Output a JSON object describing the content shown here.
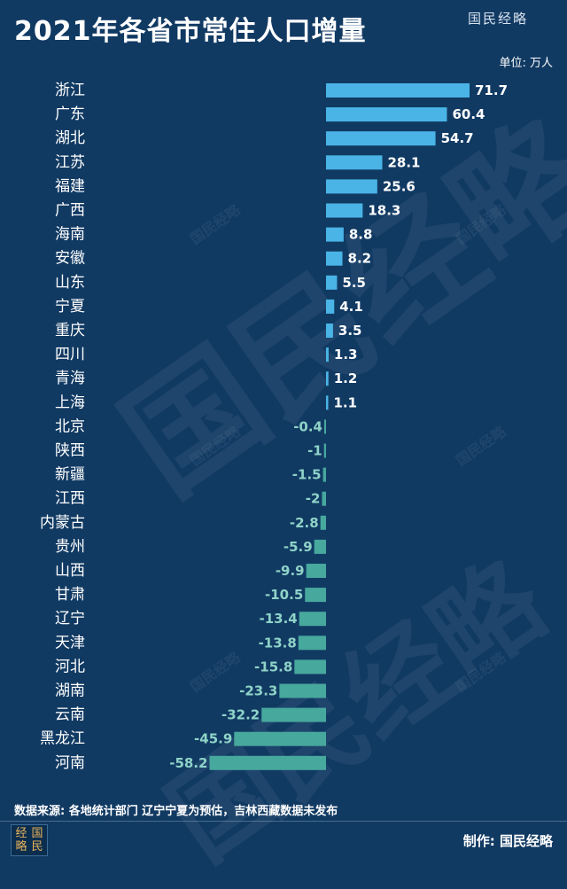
{
  "header": {
    "title": "2021年各省市常住人口增量",
    "brand": "国民经略",
    "unit": "单位: 万人"
  },
  "watermark": {
    "text": "国民经略"
  },
  "footer": {
    "source": "数据来源: 各地统计部门 辽宁宁夏为预估，吉林西藏数据未发布",
    "logo_chars": [
      "经",
      "国",
      "略",
      "民"
    ],
    "maker": "制作: 国民经略"
  },
  "colors": {
    "background": "#113a63",
    "positive_bar": "#4ab4e6",
    "negative_bar": "#47a89d",
    "negative_label": "#8fd3c8"
  },
  "chart_data": {
    "type": "bar",
    "orientation": "horizontal",
    "title": "2021年各省市常住人口增量",
    "unit": "万人",
    "categories": [
      "浙江",
      "广东",
      "湖北",
      "江苏",
      "福建",
      "广西",
      "海南",
      "安徽",
      "山东",
      "宁夏",
      "重庆",
      "四川",
      "青海",
      "上海",
      "北京",
      "陕西",
      "新疆",
      "江西",
      "内蒙古",
      "贵州",
      "山西",
      "甘肃",
      "辽宁",
      "天津",
      "河北",
      "湖南",
      "云南",
      "黑龙江",
      "河南"
    ],
    "values": [
      71.7,
      60.4,
      54.7,
      28.1,
      25.6,
      18.3,
      8.8,
      8.2,
      5.5,
      4.1,
      3.5,
      1.3,
      1.2,
      1.1,
      -0.4,
      -1,
      -1.5,
      -2,
      -2.8,
      -5.9,
      -9.9,
      -10.5,
      -13.4,
      -13.8,
      -15.8,
      -23.3,
      -32.2,
      -45.9,
      -58.2
    ],
    "value_labels": [
      "71.7",
      "60.4",
      "54.7",
      "28.1",
      "25.6",
      "18.3",
      "8.8",
      "8.2",
      "5.5",
      "4.1",
      "3.5",
      "1.3",
      "1.2",
      "1.1",
      "-0.4",
      "-1",
      "-1.5",
      "-2",
      "-2.8",
      "-5.9",
      "-9.9",
      "-10.5",
      "-13.4",
      "-13.8",
      "-15.8",
      "-23.3",
      "-32.2",
      "-45.9",
      "-58.2"
    ],
    "grid": false,
    "legend": "none"
  }
}
